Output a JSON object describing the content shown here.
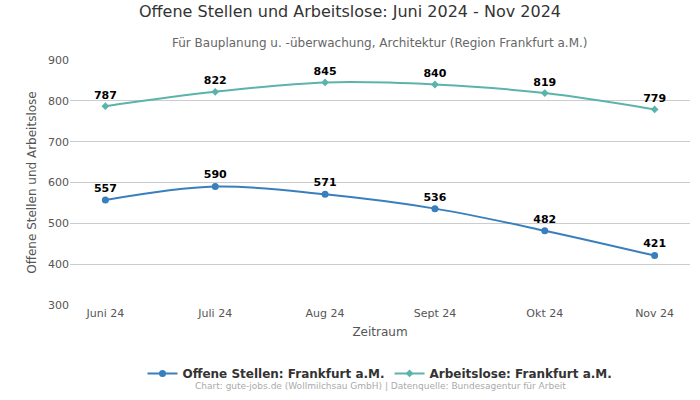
{
  "chart_data": {
    "type": "line",
    "title": "Offene Stellen und Arbeitslose: Juni 2024 - Nov 2024",
    "subtitle": "Für Bauplanung u. -überwachung, Architektur (Region Frankfurt a.M.)",
    "x_label": "Zeitraum",
    "y_label": "Offene Stellen und Arbeitslose",
    "categories": [
      "Juni 24",
      "Juli 24",
      "Aug 24",
      "Sept 24",
      "Okt 24",
      "Nov 24"
    ],
    "series": [
      {
        "name": "Offene Stellen: Frankfurt a.M.",
        "color": "#3a7fbd",
        "marker": "circle",
        "line_style": "solid",
        "values": [
          557,
          590,
          571,
          536,
          482,
          421
        ]
      },
      {
        "name": "Arbeitslose: Frankfurt a.M.",
        "color": "#5ab4ac",
        "marker": "diamond",
        "line_style": "solid",
        "values": [
          787,
          822,
          845,
          840,
          819,
          779
        ]
      }
    ],
    "ylim": [
      300,
      900
    ],
    "yticks": [
      300,
      400,
      500,
      600,
      700,
      800,
      900
    ],
    "grid": true,
    "data_labels": true,
    "legend": "bottom",
    "annotations": [
      "Chart: gute-jobs.de (Wollmilchsau GmbH) | Datenquelle: Bundesagentur für Arbeit"
    ]
  }
}
